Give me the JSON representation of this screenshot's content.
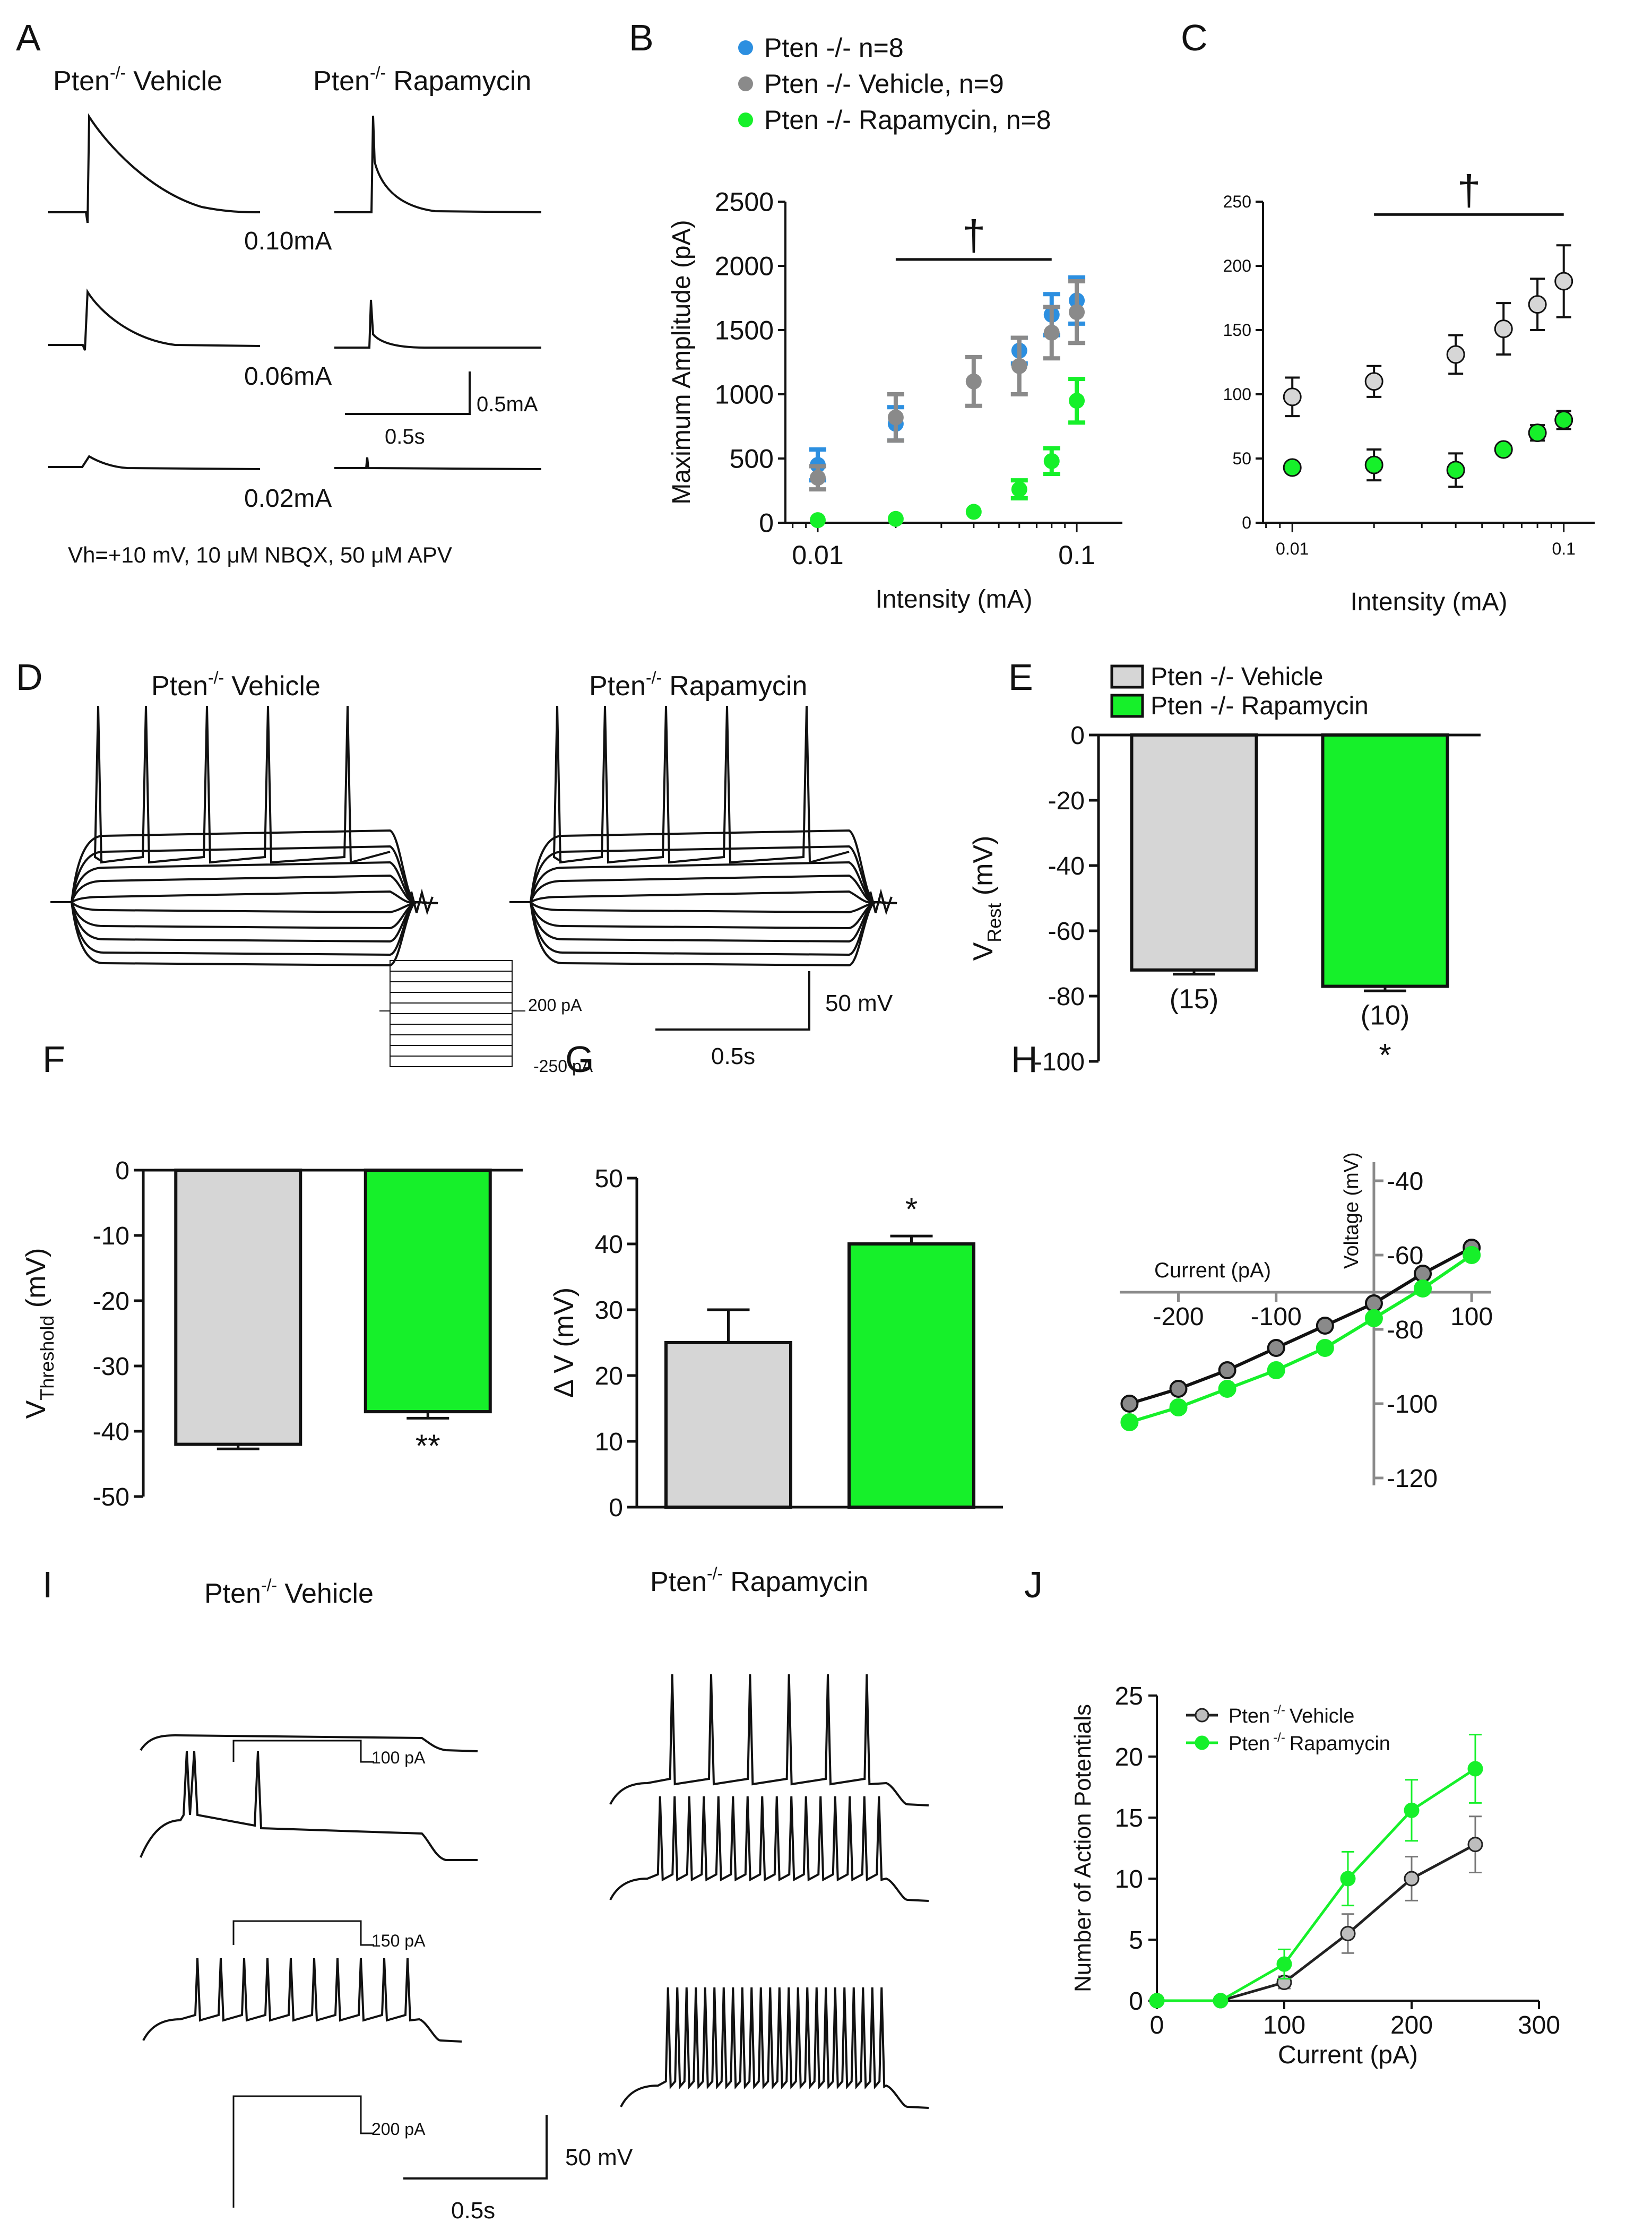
{
  "colors": {
    "blue": "#2c8fe0",
    "gray": "#8a8a8a",
    "lightgray": "#d6d6d6",
    "green": "#16f02a",
    "black": "#111111"
  },
  "panels": {
    "A": {
      "letter": "A",
      "label_vehicle": "Vehicle",
      "label_rapa": "Rapamycin",
      "gene": "Pten",
      "sup": "-/-",
      "intensities": [
        "0.10mA",
        "0.06mA",
        "0.02mA"
      ],
      "scale_x": "0.5s",
      "scale_y": "0.5mA",
      "conditions": "Vh=+10 mV, 10 μM NBQX, 50 μM APV"
    },
    "D": {
      "letter": "D",
      "label_vehicle": "Vehicle",
      "label_rapa": "Rapamycin",
      "step_top": "200 pA",
      "step_bottom": "-250 pA",
      "scale_x": "0.5s",
      "scale_y": "50 mV"
    },
    "I": {
      "letter": "I",
      "label_vehicle": "Vehicle",
      "label_rapa": "Rapamycin",
      "steps": [
        "100 pA",
        "150 pA",
        "200 pA"
      ],
      "scale_x": "0.5s",
      "scale_y": "50 mV"
    }
  },
  "chart_data": [
    {
      "id": "B",
      "letter": "B",
      "type": "scatter",
      "xscale": "log",
      "xlabel": "Intensity (mA)",
      "ylabel": "Maximum Amplitude (pA)",
      "xlim": [
        0.0075,
        0.15
      ],
      "ylim": [
        0,
        2500
      ],
      "yticks": [
        0,
        500,
        1000,
        1500,
        2000,
        2500
      ],
      "xticks": [
        {
          "v": 0.01,
          "label": "0.01"
        },
        {
          "v": 0.1,
          "label": "0.1"
        }
      ],
      "sig": "†",
      "sig_range": [
        0.02,
        0.08
      ],
      "sig_y": 2050,
      "legend": [
        "Pten -/- n=8",
        "Pten -/- Vehicle, n=9",
        "Pten -/- Rapamycin, n=8"
      ],
      "series": [
        {
          "name": "Pten -/- n=8",
          "color": "#2c8fe0",
          "x": [
            0.01,
            0.02,
            0.06,
            0.08,
            0.1
          ],
          "y": [
            450,
            770,
            1340,
            1620,
            1730
          ],
          "err": [
            120,
            130,
            100,
            160,
            180
          ],
          "errwidth": 1
        },
        {
          "name": "Pten -/- Vehicle, n=9",
          "color": "#8a8a8a",
          "x": [
            0.01,
            0.02,
            0.04,
            0.06,
            0.08,
            0.1
          ],
          "y": [
            350,
            820,
            1100,
            1220,
            1480,
            1640
          ],
          "err": [
            90,
            180,
            190,
            220,
            200,
            240
          ],
          "errwidth": 1
        },
        {
          "name": "Pten -/- Rapamycin, n=8",
          "color": "#16f02a",
          "x": [
            0.01,
            0.02,
            0.04,
            0.06,
            0.08,
            0.1
          ],
          "y": [
            20,
            30,
            85,
            260,
            480,
            950
          ],
          "err": [
            0,
            0,
            0,
            70,
            100,
            170
          ],
          "errwidth": 0.6
        }
      ]
    },
    {
      "id": "C",
      "letter": "C",
      "type": "scatter",
      "xscale": "log",
      "xlabel": "Intensity (mA)",
      "ylabel": "",
      "xlim": [
        0.0078,
        0.13
      ],
      "ylim": [
        0,
        250
      ],
      "yticks": [
        0,
        50,
        100,
        150,
        200,
        250
      ],
      "xticks": [
        {
          "v": 0.01,
          "label": "0.01"
        },
        {
          "v": 0.1,
          "label": "0.1"
        }
      ],
      "sig": "†",
      "sig_range": [
        0.02,
        0.1
      ],
      "sig_y": 240,
      "series": [
        {
          "name": "Vehicle",
          "color": "#d6d6d6",
          "x": [
            0.01,
            0.02,
            0.04,
            0.06,
            0.08,
            0.1
          ],
          "y": [
            98,
            110,
            131,
            151,
            170,
            188
          ],
          "err": [
            15,
            12,
            15,
            20,
            20,
            28
          ]
        },
        {
          "name": "Rapamycin",
          "color": "#16f02a",
          "x": [
            0.01,
            0.02,
            0.04,
            0.06,
            0.08,
            0.1
          ],
          "y": [
            43,
            45,
            41,
            57,
            70,
            80
          ],
          "err": [
            0,
            12,
            13,
            0,
            6,
            7
          ]
        }
      ]
    },
    {
      "id": "E",
      "letter": "E",
      "type": "bar",
      "ylabel": "V",
      "ylabel_sub": "Rest",
      "ylabel_unit": " (mV)",
      "ylim": [
        -100,
        0
      ],
      "yticks": [
        0,
        -20,
        -40,
        -60,
        -80,
        -100
      ],
      "categories": [
        "Pten -/- Vehicle",
        "Pten -/- Rapamycin"
      ],
      "values": [
        -72,
        -77
      ],
      "err": [
        1.3,
        1.4
      ],
      "n": [
        "(15)",
        "(10)"
      ],
      "sig": [
        "",
        "*"
      ],
      "colors": [
        "#d6d6d6",
        "#16f02a"
      ],
      "legend": [
        "Pten -/- Vehicle",
        "Pten -/- Rapamycin"
      ]
    },
    {
      "id": "F",
      "letter": "F",
      "type": "bar",
      "ylabel": "V",
      "ylabel_sub": "Threshold",
      "ylabel_unit": " (mV)",
      "ylim": [
        -50,
        0
      ],
      "yticks": [
        0,
        -10,
        -20,
        -30,
        -40,
        -50
      ],
      "categories": [
        "Vehicle",
        "Rapamycin"
      ],
      "values": [
        -42,
        -37
      ],
      "err": [
        0.7,
        1.0
      ],
      "sig": [
        "",
        "**"
      ],
      "colors": [
        "#d6d6d6",
        "#16f02a"
      ]
    },
    {
      "id": "G",
      "letter": "G",
      "type": "bar",
      "ylabel": "Δ V (mV)",
      "ylim": [
        0,
        50
      ],
      "yticks": [
        0,
        10,
        20,
        30,
        40,
        50
      ],
      "categories": [
        "Vehicle",
        "Rapamycin"
      ],
      "values": [
        25,
        40
      ],
      "err": [
        5,
        1.2
      ],
      "sig": [
        "",
        "*"
      ],
      "colors": [
        "#d6d6d6",
        "#16f02a"
      ]
    },
    {
      "id": "H",
      "letter": "H",
      "type": "line",
      "xlabel": "Current (pA)",
      "ylabel": "Voltage (mV)",
      "xlim": [
        -260,
        120
      ],
      "ylim": [
        -125,
        -35
      ],
      "x_axis_at": -70,
      "xticks": [
        -200,
        -100,
        100
      ],
      "yticks": [
        -40,
        -60,
        -80,
        -100,
        -120
      ],
      "series": [
        {
          "name": "Vehicle",
          "color": "#111111",
          "fill": "#8a8a8a",
          "x": [
            -250,
            -200,
            -150,
            -100,
            -50,
            0,
            50,
            100
          ],
          "y": [
            -100,
            -96,
            -91,
            -85,
            -79,
            -73,
            -65,
            -58
          ]
        },
        {
          "name": "Rapamycin",
          "color": "#16f02a",
          "fill": "#16f02a",
          "x": [
            -250,
            -200,
            -150,
            -100,
            -50,
            0,
            50,
            100
          ],
          "y": [
            -105,
            -101,
            -96,
            -91,
            -85,
            -77,
            -69,
            -60
          ]
        }
      ]
    },
    {
      "id": "J",
      "letter": "J",
      "type": "line",
      "xlabel": "Current (pA)",
      "ylabel": "Number of Action Potentials",
      "xlim": [
        0,
        300
      ],
      "ylim": [
        0,
        25
      ],
      "xticks": [
        0,
        100,
        200,
        300
      ],
      "yticks": [
        0,
        5,
        10,
        15,
        20,
        25
      ],
      "series": [
        {
          "name": "Pten -/- Vehicle",
          "gene": "Pten",
          "sup": "-/-",
          "cond": "Vehicle",
          "color": "#222222",
          "fill": "#bdbdbd",
          "x": [
            0,
            50,
            100,
            150,
            200,
            250
          ],
          "y": [
            0,
            0,
            1.5,
            5.5,
            10,
            12.8
          ],
          "err": [
            0,
            0,
            0.5,
            1.6,
            1.8,
            2.3
          ]
        },
        {
          "name": "Pten -/- Rapamycin",
          "gene": "Pten",
          "sup": "-/-",
          "cond": "Rapamycin",
          "color": "#16f02a",
          "fill": "#16f02a",
          "x": [
            0,
            50,
            100,
            150,
            200,
            250
          ],
          "y": [
            0,
            0,
            3,
            10,
            15.6,
            19
          ],
          "err": [
            0,
            0,
            1.2,
            2.2,
            2.5,
            2.8
          ]
        }
      ]
    }
  ]
}
